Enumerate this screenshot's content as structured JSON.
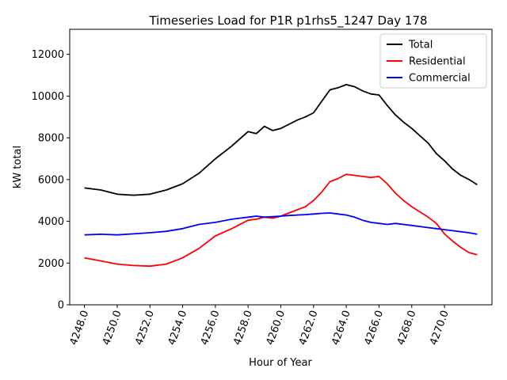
{
  "chart_data": {
    "type": "line",
    "title": "Timeseries Load for P1R p1rhs5_1247  Day 178",
    "xlabel": "Hour of Year",
    "ylabel": "kW total",
    "xlim": [
      4247.1,
      4272.9
    ],
    "ylim": [
      0,
      13200
    ],
    "xticks": [
      4248,
      4250,
      4252,
      4254,
      4256,
      4258,
      4260,
      4262,
      4264,
      4266,
      4268,
      4270
    ],
    "xtick_labels": [
      "4248.0",
      "4250.0",
      "4252.0",
      "4254.0",
      "4256.0",
      "4258.0",
      "4260.0",
      "4262.0",
      "4264.0",
      "4266.0",
      "4268.0",
      "4270.0"
    ],
    "yticks": [
      0,
      2000,
      4000,
      6000,
      8000,
      10000,
      12000
    ],
    "ytick_labels": [
      "0",
      "2000",
      "4000",
      "6000",
      "8000",
      "10000",
      "12000"
    ],
    "legend_position": "top-right",
    "series": [
      {
        "name": "Total",
        "color": "#000000",
        "x": [
          4248,
          4249,
          4250,
          4251,
          4252,
          4253,
          4254,
          4255,
          4256,
          4257,
          4258,
          4258.5,
          4259,
          4259.5,
          4260,
          4260.5,
          4261,
          4261.5,
          4262,
          4262.5,
          4263,
          4263.5,
          4264,
          4264.5,
          4265,
          4265.5,
          4266,
          4266.5,
          4267,
          4267.5,
          4268,
          4268.5,
          4269,
          4269.5,
          4270,
          4270.5,
          4271,
          4271.5,
          4272
        ],
        "values": [
          5600,
          5500,
          5300,
          5250,
          5300,
          5500,
          5800,
          6300,
          7000,
          7600,
          8300,
          8200,
          8550,
          8350,
          8450,
          8650,
          8850,
          9000,
          9200,
          9750,
          10300,
          10400,
          10550,
          10450,
          10250,
          10100,
          10050,
          9550,
          9100,
          8750,
          8450,
          8100,
          7750,
          7250,
          6900,
          6500,
          6200,
          6000,
          5750
        ]
      },
      {
        "name": "Residential",
        "color": "#ff0000",
        "x": [
          4248,
          4249,
          4250,
          4251,
          4252,
          4253,
          4254,
          4255,
          4256,
          4257,
          4258,
          4258.5,
          4259,
          4259.5,
          4260,
          4260.5,
          4261,
          4261.5,
          4262,
          4262.5,
          4263,
          4263.5,
          4264,
          4264.5,
          4265,
          4265.5,
          4266,
          4266.5,
          4267,
          4267.5,
          4268,
          4268.5,
          4269,
          4269.5,
          4270,
          4270.5,
          4271,
          4271.5,
          4272
        ],
        "values": [
          2250,
          2100,
          1950,
          1880,
          1850,
          1950,
          2250,
          2700,
          3300,
          3650,
          4050,
          4100,
          4200,
          4150,
          4250,
          4400,
          4550,
          4700,
          5000,
          5400,
          5900,
          6050,
          6250,
          6200,
          6150,
          6100,
          6150,
          5800,
          5350,
          5000,
          4700,
          4450,
          4200,
          3900,
          3400,
          3050,
          2750,
          2500,
          2400
        ]
      },
      {
        "name": "Commercial",
        "color": "#0000ff",
        "x": [
          4248,
          4249,
          4250,
          4251,
          4252,
          4253,
          4254,
          4255,
          4256,
          4257,
          4258,
          4258.5,
          4259,
          4259.5,
          4260,
          4260.5,
          4261,
          4261.5,
          4262,
          4262.5,
          4263,
          4263.5,
          4264,
          4264.5,
          4265,
          4265.5,
          4266,
          4266.5,
          4267,
          4267.5,
          4268,
          4268.5,
          4269,
          4269.5,
          4270,
          4270.5,
          4271,
          4271.5,
          4272
        ],
        "values": [
          3350,
          3380,
          3350,
          3400,
          3450,
          3520,
          3650,
          3850,
          3950,
          4100,
          4200,
          4250,
          4200,
          4220,
          4250,
          4280,
          4300,
          4320,
          4350,
          4380,
          4400,
          4350,
          4300,
          4200,
          4050,
          3950,
          3900,
          3850,
          3900,
          3850,
          3800,
          3750,
          3700,
          3650,
          3600,
          3550,
          3500,
          3450,
          3380
        ]
      }
    ]
  }
}
